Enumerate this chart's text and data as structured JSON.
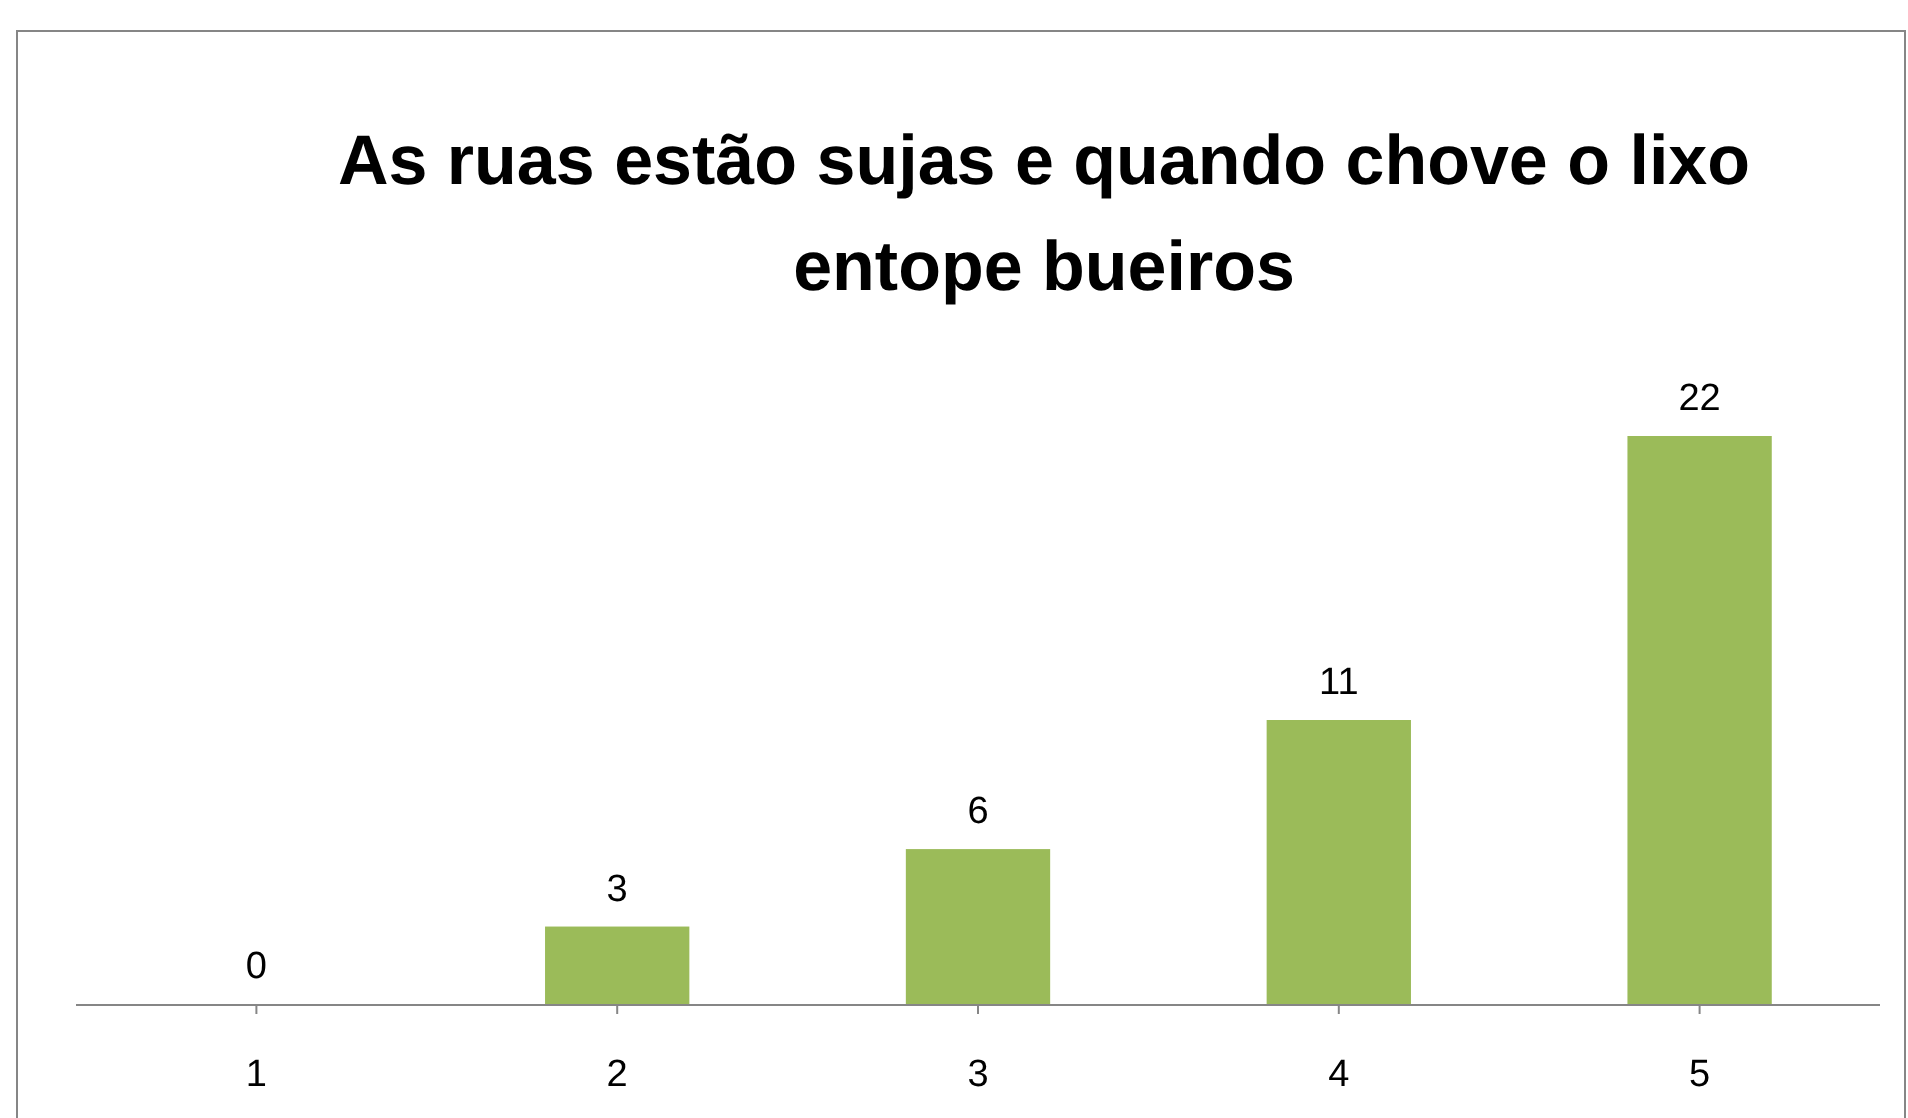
{
  "chart_data": {
    "type": "bar",
    "title": "As ruas estão sujas e quando chove o lixo entope bueiros",
    "categories": [
      "1",
      "2",
      "3",
      "4",
      "5"
    ],
    "values": [
      0,
      3,
      6,
      11,
      22
    ],
    "color": "#9bbb59",
    "data_labels": true,
    "grid": false
  }
}
